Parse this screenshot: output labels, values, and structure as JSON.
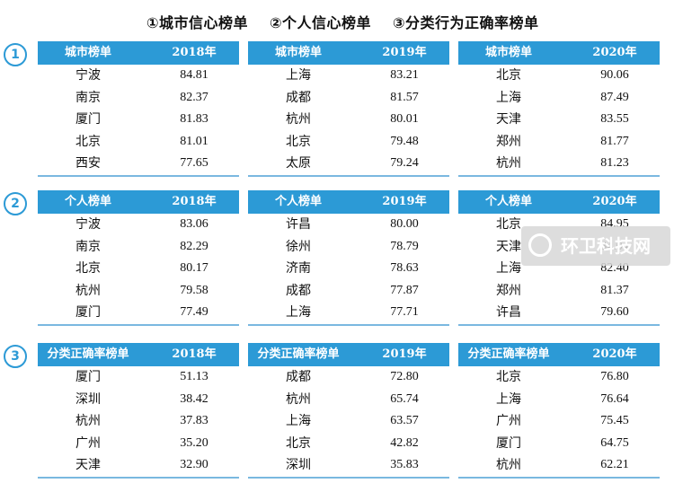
{
  "legend": {
    "item1": "①城市信心榜单",
    "item2": "②个人信心榜单",
    "item3": "③分类行为正确率榜单"
  },
  "sections": [
    {
      "number": "1",
      "tables": [
        {
          "header_label": "城市榜单",
          "year": "2018年",
          "rows": [
            [
              "宁波",
              "84.81"
            ],
            [
              "南京",
              "82.37"
            ],
            [
              "厦门",
              "81.83"
            ],
            [
              "北京",
              "81.01"
            ],
            [
              "西安",
              "77.65"
            ]
          ]
        },
        {
          "header_label": "城市榜单",
          "year": "2019年",
          "rows": [
            [
              "上海",
              "83.21"
            ],
            [
              "成都",
              "81.57"
            ],
            [
              "杭州",
              "80.01"
            ],
            [
              "北京",
              "79.48"
            ],
            [
              "太原",
              "79.24"
            ]
          ]
        },
        {
          "header_label": "城市榜单",
          "year": "2020年",
          "rows": [
            [
              "北京",
              "90.06"
            ],
            [
              "上海",
              "87.49"
            ],
            [
              "天津",
              "83.55"
            ],
            [
              "郑州",
              "81.77"
            ],
            [
              "杭州",
              "81.23"
            ]
          ]
        }
      ]
    },
    {
      "number": "2",
      "tables": [
        {
          "header_label": "个人榜单",
          "year": "2018年",
          "rows": [
            [
              "宁波",
              "83.06"
            ],
            [
              "南京",
              "82.29"
            ],
            [
              "北京",
              "80.17"
            ],
            [
              "杭州",
              "79.58"
            ],
            [
              "厦门",
              "77.49"
            ]
          ]
        },
        {
          "header_label": "个人榜单",
          "year": "2019年",
          "rows": [
            [
              "许昌",
              "80.00"
            ],
            [
              "徐州",
              "78.79"
            ],
            [
              "济南",
              "78.63"
            ],
            [
              "成都",
              "77.87"
            ],
            [
              "上海",
              "77.71"
            ]
          ]
        },
        {
          "header_label": "个人榜单",
          "year": "2020年",
          "rows": [
            [
              "北京",
              "84.95"
            ],
            [
              "天津",
              "84.04"
            ],
            [
              "上海",
              "82.40"
            ],
            [
              "郑州",
              "81.37"
            ],
            [
              "许昌",
              "79.60"
            ]
          ]
        }
      ]
    },
    {
      "number": "3",
      "tables": [
        {
          "header_label": "分类正确率榜单",
          "year": "2018年",
          "rows": [
            [
              "厦门",
              "51.13"
            ],
            [
              "深圳",
              "38.42"
            ],
            [
              "杭州",
              "37.83"
            ],
            [
              "广州",
              "35.20"
            ],
            [
              "天津",
              "32.90"
            ]
          ]
        },
        {
          "header_label": "分类正确率榜单",
          "year": "2019年",
          "rows": [
            [
              "成都",
              "72.80"
            ],
            [
              "杭州",
              "65.74"
            ],
            [
              "上海",
              "63.57"
            ],
            [
              "北京",
              "42.82"
            ],
            [
              "深圳",
              "35.83"
            ]
          ]
        },
        {
          "header_label": "分类正确率榜单",
          "year": "2020年",
          "rows": [
            [
              "北京",
              "76.80"
            ],
            [
              "上海",
              "76.64"
            ],
            [
              "广州",
              "75.45"
            ],
            [
              "厦门",
              "64.75"
            ],
            [
              "杭州",
              "62.21"
            ]
          ]
        }
      ]
    }
  ],
  "watermark": {
    "text": "环卫科技网",
    "icon": "leaf-logo-icon"
  },
  "colors": {
    "accent": "#2c9ad6",
    "header_text": "#ffffff"
  }
}
